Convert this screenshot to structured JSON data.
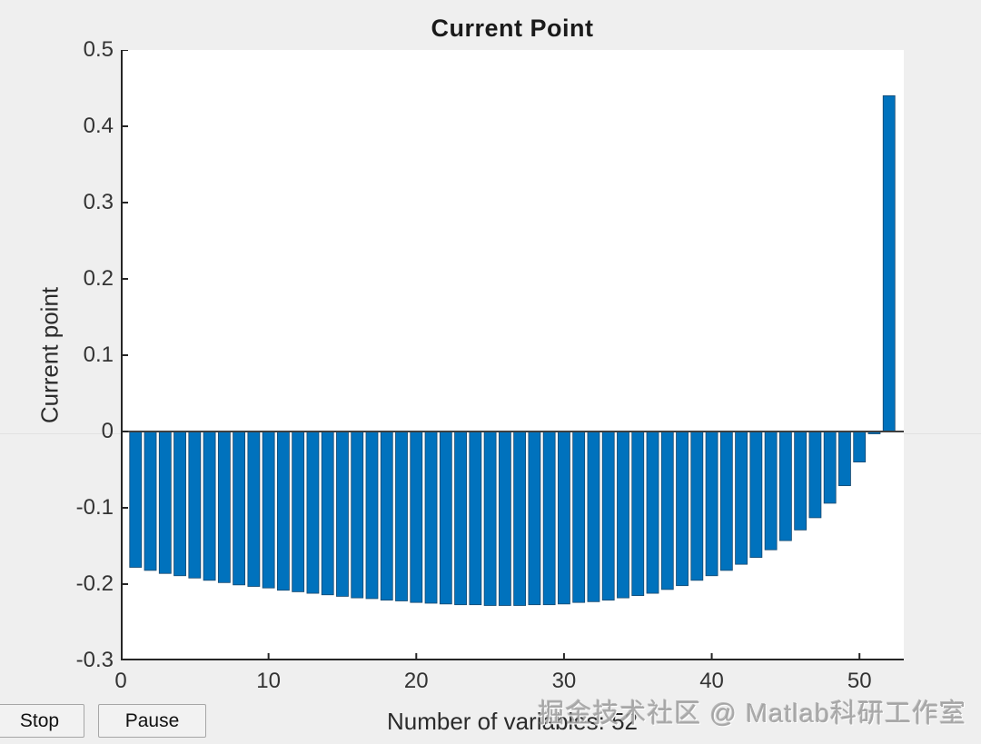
{
  "figure": {
    "background": "#efefef",
    "plot_background": "#ffffff",
    "axis_color": "#262626",
    "tick_label_color": "#333333"
  },
  "chart_data": {
    "type": "bar",
    "title": "Current Point",
    "xlabel": "Number of variables: 52",
    "ylabel": "Current point",
    "xlim": [
      0,
      53
    ],
    "ylim": [
      -0.3,
      0.5
    ],
    "grid": false,
    "legend": null,
    "bar_width": 0.8,
    "bar_color": "#0072BD",
    "bar_edge_color": "#15476d",
    "baseline_color": "#3f3f3f",
    "num_bars": 52,
    "values": [
      -0.178,
      -0.182,
      -0.186,
      -0.189,
      -0.192,
      -0.195,
      -0.198,
      -0.201,
      -0.203,
      -0.205,
      -0.208,
      -0.21,
      -0.212,
      -0.214,
      -0.216,
      -0.218,
      -0.219,
      -0.221,
      -0.222,
      -0.224,
      -0.225,
      -0.226,
      -0.227,
      -0.227,
      -0.228,
      -0.228,
      -0.228,
      -0.227,
      -0.227,
      -0.226,
      -0.224,
      -0.223,
      -0.221,
      -0.218,
      -0.215,
      -0.212,
      -0.207,
      -0.202,
      -0.195,
      -0.189,
      -0.182,
      -0.174,
      -0.165,
      -0.155,
      -0.143,
      -0.129,
      -0.113,
      -0.094,
      -0.071,
      -0.04,
      -0.003,
      0.44
    ],
    "x_ticks": [
      {
        "v": 0,
        "label": "0"
      },
      {
        "v": 10,
        "label": "10"
      },
      {
        "v": 20,
        "label": "20"
      },
      {
        "v": 30,
        "label": "30"
      },
      {
        "v": 40,
        "label": "40"
      },
      {
        "v": 50,
        "label": "50"
      }
    ],
    "y_ticks": [
      {
        "v": 0.5,
        "label": "0.5"
      },
      {
        "v": 0.4,
        "label": "0.4"
      },
      {
        "v": 0.3,
        "label": "0.3"
      },
      {
        "v": 0.2,
        "label": "0.2"
      },
      {
        "v": 0.1,
        "label": "0.1"
      },
      {
        "v": 0,
        "label": "0"
      },
      {
        "v": -0.1,
        "label": "-0.1"
      },
      {
        "v": -0.2,
        "label": "-0.2"
      },
      {
        "v": -0.3,
        "label": "-0.3"
      }
    ]
  },
  "buttons": {
    "stop_label": "Stop",
    "pause_label": "Pause"
  },
  "watermark": {
    "text": "掘金技术社区 @ Matlab科研工作室"
  }
}
